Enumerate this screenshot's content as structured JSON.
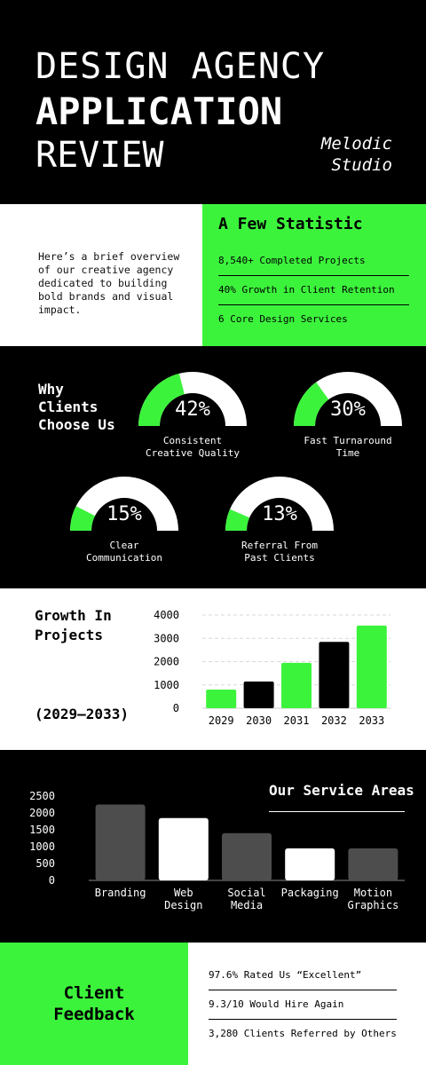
{
  "header": {
    "title_line1": "DESIGN AGENCY",
    "title_line2": "APPLICATION",
    "title_line3": "REVIEW",
    "studio_line1": "Melodic",
    "studio_line2": "Studio"
  },
  "intro": {
    "text": "Here’s a brief overview of our creative agency dedicated to building bold brands and visual impact."
  },
  "stats": {
    "title": "A Few Statistic",
    "items": [
      "8,540+ Completed Projects",
      "40% Growth in Client Retention",
      "6 Core Design Services"
    ]
  },
  "why": {
    "title_line1": "Why",
    "title_line2": "Clients",
    "title_line3": "Choose Us",
    "gauges": [
      {
        "pct_label": "42%",
        "value": 42,
        "label_line1": "Consistent",
        "label_line2": "Creative Quality"
      },
      {
        "pct_label": "30%",
        "value": 30,
        "label_line1": "Fast Turnaround",
        "label_line2": "Time"
      },
      {
        "pct_label": "15%",
        "value": 15,
        "label_line1": "Clear",
        "label_line2": "Communication"
      },
      {
        "pct_label": "13%",
        "value": 13,
        "label_line1": "Referral From",
        "label_line2": "Past Clients"
      }
    ]
  },
  "growth": {
    "title_line1": "Growth In",
    "title_line2": "Projects",
    "range": "(2029–2033)"
  },
  "services": {
    "title": "Our Service Areas"
  },
  "feedback": {
    "title_line1": "Client",
    "title_line2": "Feedback",
    "items": [
      "97.6% Rated Us “Excellent”",
      "9.3/10 Would Hire Again",
      "3,280 Clients Referred by Others"
    ]
  },
  "colors": {
    "accent": "#3cf33c",
    "dark_bar": "#4d4d4d",
    "black": "#000000",
    "white": "#ffffff"
  },
  "chart_data": [
    {
      "type": "bar",
      "categories": [
        "2029",
        "2030",
        "2031",
        "2032",
        "2033"
      ],
      "values": [
        800,
        1150,
        1950,
        2850,
        3550
      ],
      "yticks": [
        "0",
        "1000",
        "2000",
        "3000",
        "4000"
      ],
      "ylim": [
        0,
        4000
      ],
      "grid": true,
      "bar_colors": [
        "#3cf33c",
        "#000000",
        "#3cf33c",
        "#000000",
        "#3cf33c"
      ]
    },
    {
      "type": "bar",
      "categories": [
        [
          "Branding"
        ],
        [
          "Web",
          "Design"
        ],
        [
          "Social",
          "Media"
        ],
        [
          "Packaging"
        ],
        [
          "Motion",
          "Graphics"
        ]
      ],
      "values": [
        2250,
        1850,
        1400,
        950,
        950
      ],
      "yticks": [
        "0",
        "500",
        "1000",
        "1500",
        "2000",
        "2500"
      ],
      "ylim": [
        0,
        2500
      ],
      "grid": false,
      "bar_colors": [
        "#4d4d4d",
        "#ffffff",
        "#4d4d4d",
        "#ffffff",
        "#4d4d4d"
      ]
    }
  ]
}
